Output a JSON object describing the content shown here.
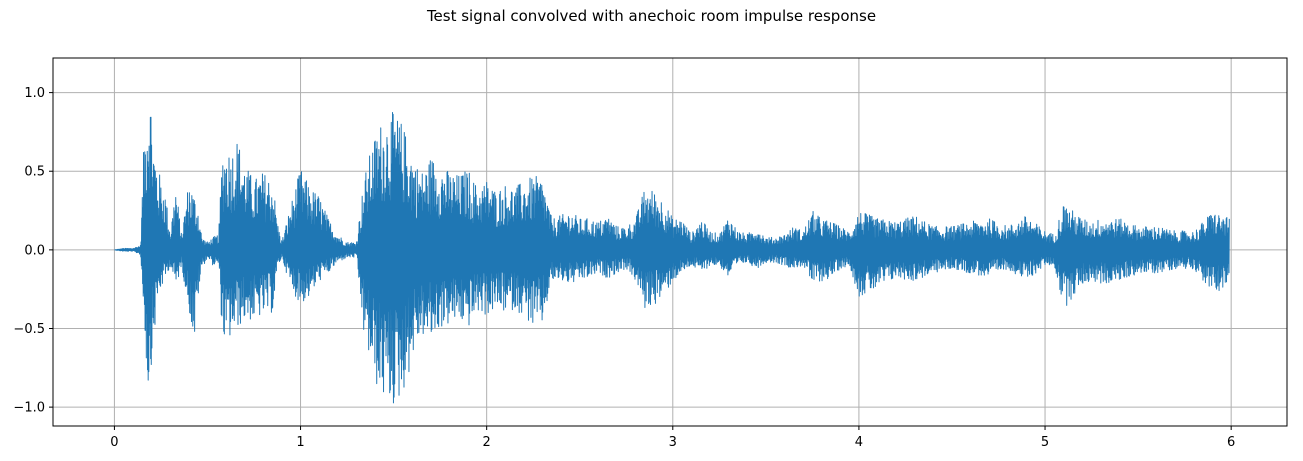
{
  "chart_data": {
    "type": "line",
    "title": "Test signal convolved with anechoic room impulse response",
    "xlabel": "",
    "ylabel": "",
    "xlim": [
      -0.33,
      6.3
    ],
    "ylim": [
      -1.12,
      1.22
    ],
    "xticks": [
      0,
      1,
      2,
      3,
      4,
      5,
      6
    ],
    "xtick_labels": [
      "0",
      "1",
      "2",
      "3",
      "4",
      "5",
      "6"
    ],
    "yticks": [
      1.0,
      0.5,
      0.0,
      -0.5,
      -1.0
    ],
    "ytick_labels": [
      "1.0",
      "0.5",
      "0.0",
      "−0.5",
      "−1.0"
    ],
    "grid": true,
    "legend": "none",
    "series_color": "#1f77b4",
    "grid_color": "#b0b0b0",
    "series": [
      {
        "x": [
          0.0,
          0.05,
          0.1,
          0.14,
          0.16,
          0.18,
          0.19,
          0.2,
          0.21,
          0.23,
          0.25,
          0.27,
          0.3,
          0.33,
          0.36,
          0.4,
          0.43,
          0.45,
          0.47,
          0.5,
          0.53,
          0.56,
          0.58,
          0.6,
          0.63,
          0.66,
          0.7,
          0.75,
          0.8,
          0.85,
          0.88,
          0.9,
          0.95,
          1.0,
          1.05,
          1.1,
          1.15,
          1.2,
          1.25,
          1.3,
          1.34,
          1.38,
          1.42,
          1.46,
          1.5,
          1.54,
          1.58,
          1.62,
          1.66,
          1.7,
          1.75,
          1.8,
          1.85,
          1.9,
          1.95,
          2.0,
          2.05,
          2.1,
          2.15,
          2.2,
          2.25,
          2.3,
          2.35,
          2.4,
          2.45,
          2.5,
          2.55,
          2.6,
          2.65,
          2.7,
          2.75,
          2.8,
          2.85,
          2.9,
          2.95,
          3.0,
          3.05,
          3.1,
          3.15,
          3.2,
          3.25,
          3.3,
          3.35,
          3.4,
          3.45,
          3.5,
          3.55,
          3.6,
          3.65,
          3.7,
          3.75,
          3.8,
          3.85,
          3.9,
          3.95,
          4.0,
          4.1,
          4.2,
          4.3,
          4.4,
          4.5,
          4.6,
          4.7,
          4.8,
          4.9,
          5.0,
          5.05,
          5.1,
          5.15,
          5.2,
          5.25,
          5.3,
          5.4,
          5.5,
          5.6,
          5.7,
          5.8,
          5.85,
          5.9,
          5.95,
          5.99
        ],
        "y_upper": [
          0.0,
          0.01,
          0.01,
          0.03,
          0.75,
          1.02,
          1.1,
          0.9,
          0.7,
          0.55,
          0.45,
          0.4,
          0.12,
          0.42,
          0.1,
          0.45,
          0.35,
          0.28,
          0.08,
          0.05,
          0.08,
          0.1,
          0.65,
          0.66,
          0.64,
          0.72,
          0.55,
          0.45,
          0.5,
          0.45,
          0.15,
          0.06,
          0.3,
          0.52,
          0.4,
          0.35,
          0.2,
          0.1,
          0.05,
          0.05,
          0.45,
          0.65,
          0.8,
          0.85,
          0.88,
          0.82,
          0.7,
          0.55,
          0.5,
          0.6,
          0.55,
          0.5,
          0.48,
          0.52,
          0.4,
          0.45,
          0.38,
          0.42,
          0.4,
          0.44,
          0.47,
          0.46,
          0.2,
          0.22,
          0.25,
          0.2,
          0.2,
          0.18,
          0.22,
          0.15,
          0.15,
          0.2,
          0.4,
          0.38,
          0.32,
          0.2,
          0.2,
          0.1,
          0.2,
          0.12,
          0.1,
          0.22,
          0.12,
          0.1,
          0.15,
          0.08,
          0.08,
          0.1,
          0.15,
          0.12,
          0.25,
          0.2,
          0.18,
          0.15,
          0.12,
          0.25,
          0.2,
          0.18,
          0.22,
          0.15,
          0.15,
          0.18,
          0.2,
          0.15,
          0.22,
          0.12,
          0.1,
          0.3,
          0.25,
          0.2,
          0.18,
          0.2,
          0.2,
          0.15,
          0.15,
          0.12,
          0.12,
          0.18,
          0.25,
          0.22,
          0.2
        ],
        "y_lower": [
          0.0,
          -0.01,
          -0.01,
          -0.03,
          -0.45,
          -0.92,
          -0.85,
          -0.7,
          -0.6,
          -0.35,
          -0.25,
          -0.2,
          -0.1,
          -0.25,
          -0.1,
          -0.38,
          -0.6,
          -0.3,
          -0.12,
          -0.05,
          -0.1,
          -0.1,
          -0.55,
          -0.62,
          -0.55,
          -0.5,
          -0.45,
          -0.45,
          -0.42,
          -0.4,
          -0.1,
          -0.05,
          -0.25,
          -0.35,
          -0.3,
          -0.2,
          -0.15,
          -0.08,
          -0.05,
          -0.05,
          -0.55,
          -0.75,
          -0.92,
          -0.97,
          -1.0,
          -0.95,
          -0.8,
          -0.6,
          -0.55,
          -0.58,
          -0.5,
          -0.48,
          -0.45,
          -0.5,
          -0.4,
          -0.42,
          -0.38,
          -0.4,
          -0.38,
          -0.42,
          -0.5,
          -0.48,
          -0.2,
          -0.2,
          -0.22,
          -0.2,
          -0.18,
          -0.15,
          -0.18,
          -0.15,
          -0.12,
          -0.2,
          -0.38,
          -0.35,
          -0.3,
          -0.2,
          -0.15,
          -0.1,
          -0.15,
          -0.1,
          -0.1,
          -0.18,
          -0.1,
          -0.08,
          -0.12,
          -0.08,
          -0.08,
          -0.1,
          -0.12,
          -0.1,
          -0.22,
          -0.2,
          -0.18,
          -0.12,
          -0.1,
          -0.3,
          -0.25,
          -0.18,
          -0.2,
          -0.15,
          -0.12,
          -0.15,
          -0.18,
          -0.12,
          -0.2,
          -0.1,
          -0.1,
          -0.38,
          -0.3,
          -0.22,
          -0.2,
          -0.22,
          -0.2,
          -0.15,
          -0.15,
          -0.12,
          -0.12,
          -0.2,
          -0.28,
          -0.25,
          -0.22
        ]
      }
    ]
  }
}
